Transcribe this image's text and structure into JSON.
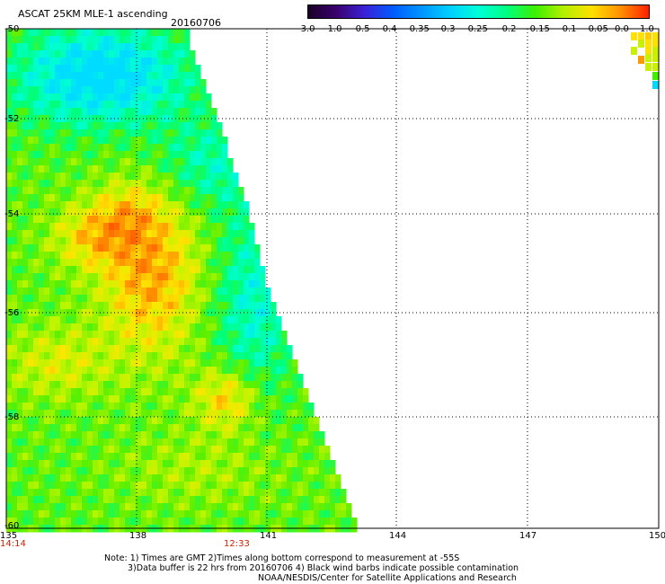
{
  "header": {
    "title": "ASCAT 25KM MLE-1 ascending",
    "date": "20160706"
  },
  "colorbar": {
    "tick_labels": [
      "-3.0",
      "-1.0",
      "-0.5",
      "-0.4",
      "-0.35",
      "-0.3",
      "-0.25",
      "-0.2",
      "-0.15",
      "-0.1",
      "-0.05",
      "0.0",
      "1.0"
    ],
    "colors": [
      "#1a0026",
      "#3a006e",
      "#3a22d8",
      "#005cff",
      "#0096ff",
      "#00d0ff",
      "#00ffd8",
      "#00ff80",
      "#3cf000",
      "#b4f000",
      "#ffe000",
      "#ff9000",
      "#ff2000"
    ]
  },
  "axes": {
    "x_ticks": [
      "135",
      "138",
      "141",
      "144",
      "147",
      "150"
    ],
    "y_ticks": [
      "-50",
      "-52",
      "-54",
      "-56",
      "-58",
      "-60"
    ],
    "time_labels": [
      "14:14",
      "12:33"
    ],
    "lon_range": [
      135,
      150
    ],
    "lat_range": [
      -60,
      -50
    ]
  },
  "notes": {
    "line1": "Note: 1) Times are GMT 2)Times along bottom correspond to measurement at -55S",
    "line2": "3)Data buffer is 22 hrs from 20160706 4) Black wind barbs indicate possible contamination",
    "line3": "NOAA/NESDIS/Center for Satellite Applications and Research"
  }
}
